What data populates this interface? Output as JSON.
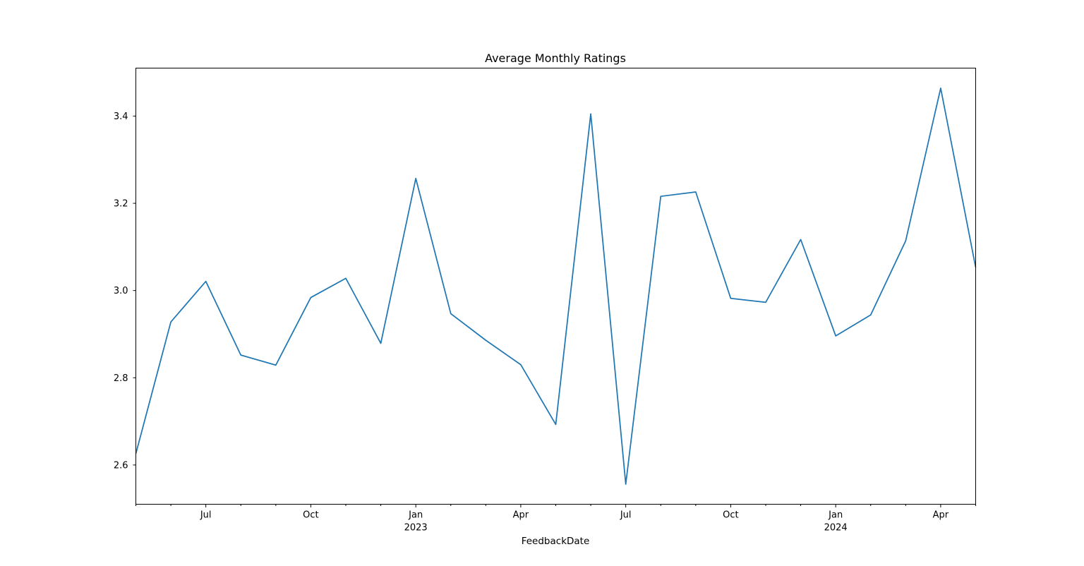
{
  "chart_data": {
    "type": "line",
    "title": "Average Monthly Ratings",
    "xlabel": "FeedbackDate",
    "ylabel": "",
    "ylim": [
      2.51,
      3.51
    ],
    "yticks": [
      2.6,
      2.8,
      3.0,
      3.2,
      3.4
    ],
    "x": [
      "2022-05",
      "2022-06",
      "2022-07",
      "2022-08",
      "2022-09",
      "2022-10",
      "2022-11",
      "2022-12",
      "2023-01",
      "2023-02",
      "2023-03",
      "2023-04",
      "2023-05",
      "2023-06",
      "2023-07",
      "2023-08",
      "2023-09",
      "2023-10",
      "2023-11",
      "2023-12",
      "2024-01",
      "2024-02",
      "2024-03",
      "2024-04",
      "2024-05"
    ],
    "series": [
      {
        "name": "Rating",
        "color": "#1f77b4",
        "values": [
          2.626,
          2.928,
          3.021,
          2.852,
          2.829,
          2.984,
          3.028,
          2.879,
          3.257,
          2.947,
          2.886,
          2.83,
          2.693,
          3.405,
          2.556,
          3.216,
          3.226,
          2.982,
          2.973,
          3.117,
          2.896,
          2.944,
          3.114,
          3.464,
          3.053
        ]
      }
    ],
    "xticks": [
      {
        "index": 2,
        "label": "Jul",
        "sublabel": ""
      },
      {
        "index": 5,
        "label": "Oct",
        "sublabel": ""
      },
      {
        "index": 8,
        "label": "Jan",
        "sublabel": "2023"
      },
      {
        "index": 11,
        "label": "Apr",
        "sublabel": ""
      },
      {
        "index": 14,
        "label": "Jul",
        "sublabel": ""
      },
      {
        "index": 17,
        "label": "Oct",
        "sublabel": ""
      },
      {
        "index": 20,
        "label": "Jan",
        "sublabel": "2024"
      },
      {
        "index": 23,
        "label": "Apr",
        "sublabel": ""
      }
    ],
    "grid": false,
    "legend": "none"
  }
}
